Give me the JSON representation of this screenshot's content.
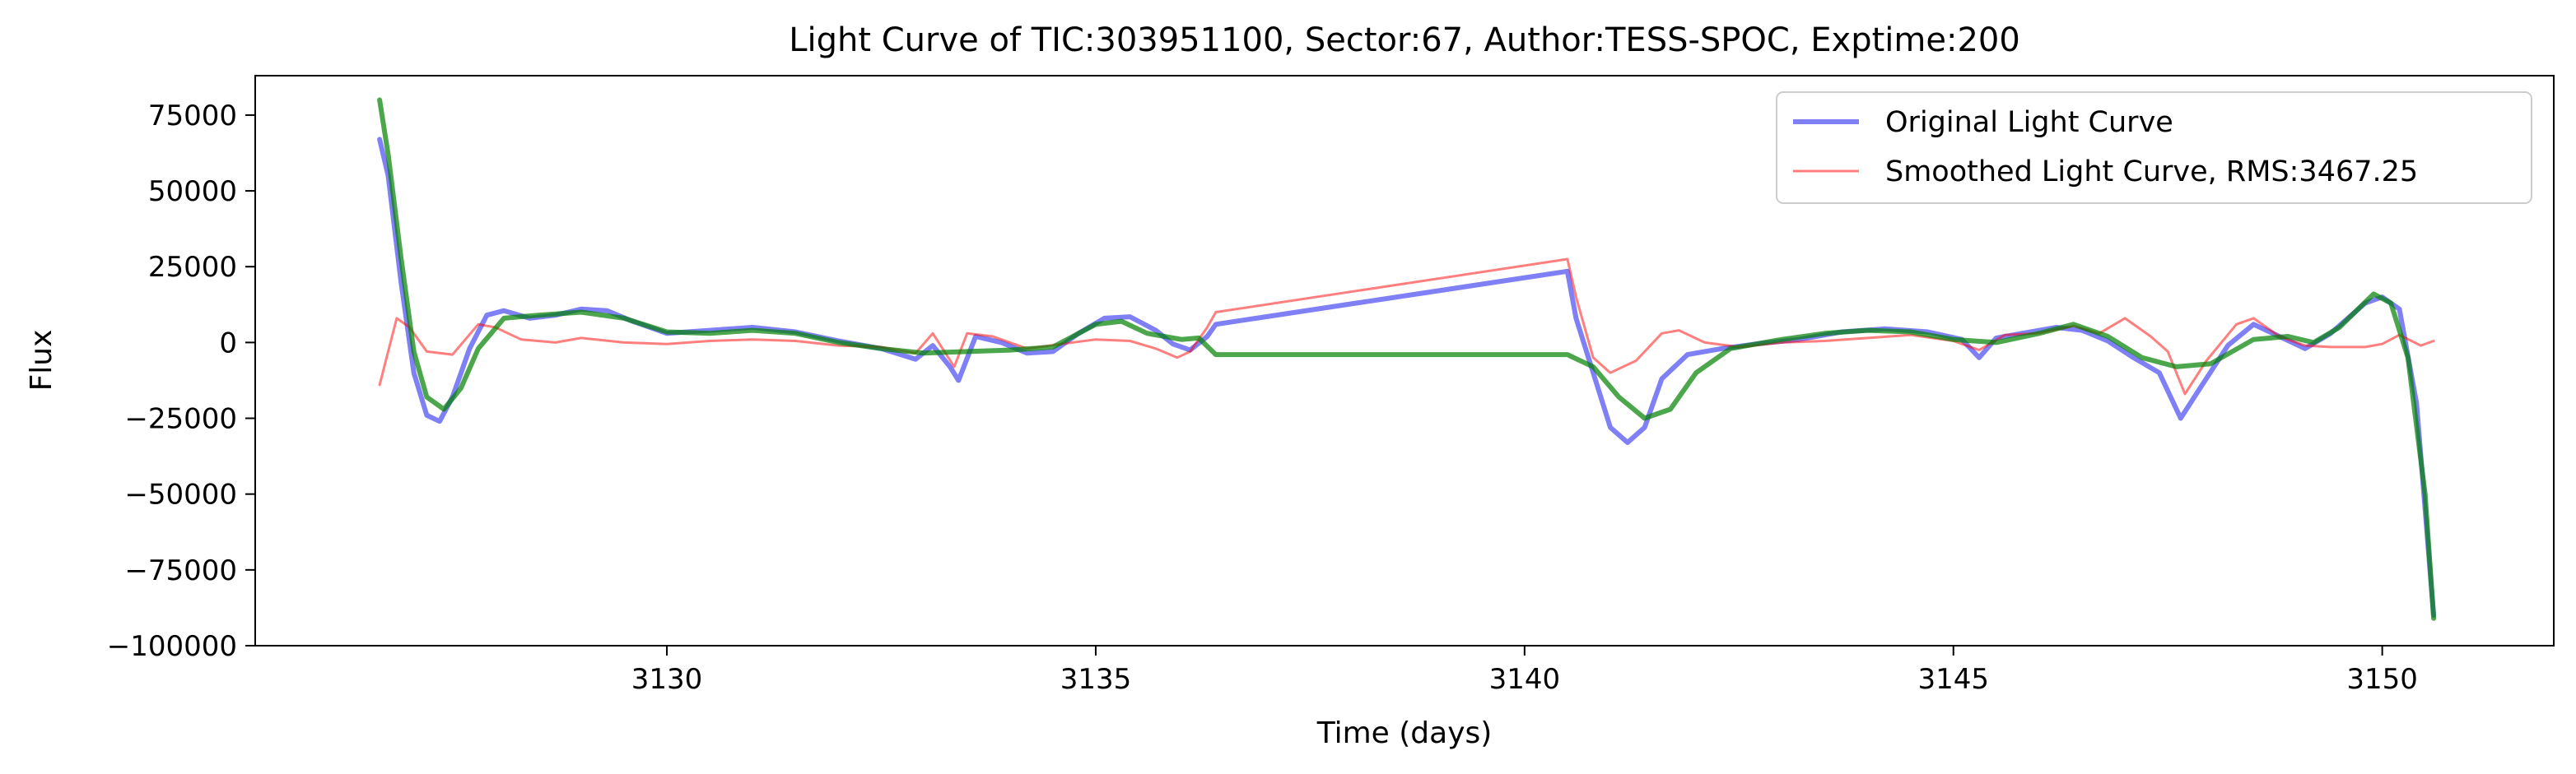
{
  "chart_data": {
    "type": "line",
    "title": "Light Curve of TIC:303951100, Sector:67, Author:TESS-SPOC, Exptime:200",
    "xlabel": "Time (days)",
    "ylabel": "Flux",
    "xlim": [
      3125.2,
      3152.0
    ],
    "ylim": [
      -100000,
      88000
    ],
    "x_ticks": [
      3130,
      3135,
      3140,
      3145,
      3150
    ],
    "x_tick_labels": [
      "3130",
      "3135",
      "3140",
      "3145",
      "3150"
    ],
    "y_ticks": [
      -100000,
      -75000,
      -50000,
      -25000,
      0,
      25000,
      50000,
      75000
    ],
    "y_tick_labels": [
      "−100000",
      "−75000",
      "−50000",
      "−25000",
      "0",
      "25000",
      "50000",
      "75000"
    ],
    "grid": false,
    "legend_position": "top-right",
    "series": [
      {
        "name": "Original Light Curve",
        "color": "#0000ee",
        "opacity": 0.5,
        "line_width": "thick",
        "points": [
          [
            3126.65,
            67000
          ],
          [
            3126.75,
            55000
          ],
          [
            3126.9,
            20000
          ],
          [
            3127.05,
            -10000
          ],
          [
            3127.2,
            -24000
          ],
          [
            3127.35,
            -26000
          ],
          [
            3127.5,
            -18000
          ],
          [
            3127.7,
            -2000
          ],
          [
            3127.9,
            9000
          ],
          [
            3128.1,
            10500
          ],
          [
            3128.4,
            8000
          ],
          [
            3128.7,
            9000
          ],
          [
            3129.0,
            11000
          ],
          [
            3129.3,
            10500
          ],
          [
            3129.6,
            7000
          ],
          [
            3130.0,
            3000
          ],
          [
            3130.5,
            4000
          ],
          [
            3131.0,
            5000
          ],
          [
            3131.5,
            3500
          ],
          [
            3132.0,
            500
          ],
          [
            3132.5,
            -2000
          ],
          [
            3132.9,
            -5500
          ],
          [
            3133.1,
            -1000
          ],
          [
            3133.3,
            -8000
          ],
          [
            3133.4,
            -12500
          ],
          [
            3133.6,
            2000
          ],
          [
            3133.9,
            0
          ],
          [
            3134.2,
            -3500
          ],
          [
            3134.5,
            -3000
          ],
          [
            3134.8,
            3000
          ],
          [
            3135.1,
            8000
          ],
          [
            3135.4,
            8500
          ],
          [
            3135.7,
            4000
          ],
          [
            3135.9,
            -500
          ],
          [
            3136.1,
            -2500
          ],
          [
            3136.3,
            2000
          ],
          [
            3136.4,
            6000
          ],
          [
            3140.5,
            23500
          ],
          [
            3140.6,
            8000
          ],
          [
            3140.8,
            -10000
          ],
          [
            3141.0,
            -28000
          ],
          [
            3141.2,
            -33000
          ],
          [
            3141.4,
            -28000
          ],
          [
            3141.6,
            -12000
          ],
          [
            3141.9,
            -4000
          ],
          [
            3142.3,
            -2000
          ],
          [
            3142.7,
            -500
          ],
          [
            3143.2,
            1000
          ],
          [
            3143.7,
            3500
          ],
          [
            3144.2,
            4500
          ],
          [
            3144.7,
            3500
          ],
          [
            3145.1,
            1000
          ],
          [
            3145.3,
            -5000
          ],
          [
            3145.5,
            1500
          ],
          [
            3145.8,
            3000
          ],
          [
            3146.2,
            5000
          ],
          [
            3146.5,
            4000
          ],
          [
            3146.8,
            500
          ],
          [
            3147.1,
            -5000
          ],
          [
            3147.4,
            -10000
          ],
          [
            3147.65,
            -25000
          ],
          [
            3147.9,
            -14000
          ],
          [
            3148.2,
            -1000
          ],
          [
            3148.5,
            6000
          ],
          [
            3148.8,
            2000
          ],
          [
            3149.1,
            -2000
          ],
          [
            3149.4,
            3000
          ],
          [
            3149.8,
            13000
          ],
          [
            3150.0,
            15000
          ],
          [
            3150.2,
            11000
          ],
          [
            3150.4,
            -20000
          ],
          [
            3150.6,
            -90000
          ]
        ]
      },
      {
        "name": "Smoothed Light Curve, RMS:3467.25",
        "color": "#ff0000",
        "opacity": 0.5,
        "line_width": "thin",
        "points": [
          [
            3126.65,
            -14000
          ],
          [
            3126.75,
            -3000
          ],
          [
            3126.85,
            8000
          ],
          [
            3127.0,
            5000
          ],
          [
            3127.2,
            -3000
          ],
          [
            3127.5,
            -4000
          ],
          [
            3127.8,
            6000
          ],
          [
            3128.0,
            5000
          ],
          [
            3128.3,
            1000
          ],
          [
            3128.7,
            0
          ],
          [
            3129.0,
            1500
          ],
          [
            3129.5,
            0
          ],
          [
            3130.0,
            -500
          ],
          [
            3130.5,
            500
          ],
          [
            3131.0,
            1000
          ],
          [
            3131.5,
            500
          ],
          [
            3132.0,
            -1000
          ],
          [
            3132.5,
            -1500
          ],
          [
            3132.9,
            -3500
          ],
          [
            3133.1,
            3000
          ],
          [
            3133.35,
            -8000
          ],
          [
            3133.5,
            3000
          ],
          [
            3133.8,
            2000
          ],
          [
            3134.2,
            -2000
          ],
          [
            3134.6,
            -500
          ],
          [
            3135.0,
            1000
          ],
          [
            3135.4,
            500
          ],
          [
            3135.7,
            -2000
          ],
          [
            3135.95,
            -5000
          ],
          [
            3136.1,
            -3000
          ],
          [
            3136.3,
            5000
          ],
          [
            3136.4,
            10000
          ],
          [
            3140.5,
            27500
          ],
          [
            3140.6,
            15000
          ],
          [
            3140.8,
            -5000
          ],
          [
            3141.0,
            -10000
          ],
          [
            3141.3,
            -6000
          ],
          [
            3141.6,
            3000
          ],
          [
            3141.8,
            4000
          ],
          [
            3142.1,
            0
          ],
          [
            3142.5,
            -1500
          ],
          [
            3143.0,
            0
          ],
          [
            3143.5,
            500
          ],
          [
            3144.0,
            1500
          ],
          [
            3144.5,
            2500
          ],
          [
            3145.0,
            500
          ],
          [
            3145.3,
            -2500
          ],
          [
            3145.6,
            2500
          ],
          [
            3146.0,
            3000
          ],
          [
            3146.4,
            5500
          ],
          [
            3146.7,
            3000
          ],
          [
            3147.0,
            8000
          ],
          [
            3147.3,
            2000
          ],
          [
            3147.5,
            -3000
          ],
          [
            3147.7,
            -17000
          ],
          [
            3147.95,
            -6000
          ],
          [
            3148.3,
            6000
          ],
          [
            3148.5,
            8000
          ],
          [
            3148.8,
            2000
          ],
          [
            3149.1,
            -1000
          ],
          [
            3149.4,
            -1500
          ],
          [
            3149.8,
            -1500
          ],
          [
            3150.0,
            -500
          ],
          [
            3150.2,
            2500
          ],
          [
            3150.45,
            -1000
          ],
          [
            3150.6,
            500
          ]
        ]
      },
      {
        "name": "",
        "color": "#008000",
        "opacity": 0.7,
        "line_width": "thick",
        "points": [
          [
            3126.65,
            80000
          ],
          [
            3126.75,
            62000
          ],
          [
            3126.9,
            28000
          ],
          [
            3127.05,
            -3000
          ],
          [
            3127.2,
            -18000
          ],
          [
            3127.4,
            -22000
          ],
          [
            3127.6,
            -15000
          ],
          [
            3127.8,
            -2000
          ],
          [
            3128.1,
            8000
          ],
          [
            3128.5,
            9000
          ],
          [
            3129.0,
            10000
          ],
          [
            3129.5,
            8000
          ],
          [
            3130.0,
            3500
          ],
          [
            3130.5,
            3000
          ],
          [
            3131.0,
            4000
          ],
          [
            3131.5,
            3000
          ],
          [
            3132.0,
            0
          ],
          [
            3132.5,
            -2000
          ],
          [
            3133.0,
            -3500
          ],
          [
            3133.5,
            -3000
          ],
          [
            3134.0,
            -2500
          ],
          [
            3134.5,
            -1500
          ],
          [
            3135.0,
            6000
          ],
          [
            3135.3,
            7000
          ],
          [
            3135.6,
            3000
          ],
          [
            3136.0,
            1000
          ],
          [
            3136.2,
            1500
          ],
          [
            3136.4,
            -4000
          ],
          [
            3140.5,
            -4000
          ],
          [
            3140.8,
            -8000
          ],
          [
            3141.1,
            -18000
          ],
          [
            3141.4,
            -25000
          ],
          [
            3141.7,
            -22000
          ],
          [
            3142.0,
            -10000
          ],
          [
            3142.4,
            -2000
          ],
          [
            3143.0,
            1000
          ],
          [
            3143.5,
            3000
          ],
          [
            3144.0,
            4000
          ],
          [
            3144.5,
            3500
          ],
          [
            3145.0,
            1000
          ],
          [
            3145.5,
            0
          ],
          [
            3146.0,
            3000
          ],
          [
            3146.4,
            6000
          ],
          [
            3146.8,
            2000
          ],
          [
            3147.2,
            -5000
          ],
          [
            3147.6,
            -8000
          ],
          [
            3148.0,
            -7000
          ],
          [
            3148.5,
            1000
          ],
          [
            3148.9,
            2000
          ],
          [
            3149.2,
            0
          ],
          [
            3149.5,
            5000
          ],
          [
            3149.9,
            16000
          ],
          [
            3150.1,
            13000
          ],
          [
            3150.3,
            -5000
          ],
          [
            3150.5,
            -50000
          ],
          [
            3150.6,
            -91000
          ]
        ]
      }
    ]
  }
}
